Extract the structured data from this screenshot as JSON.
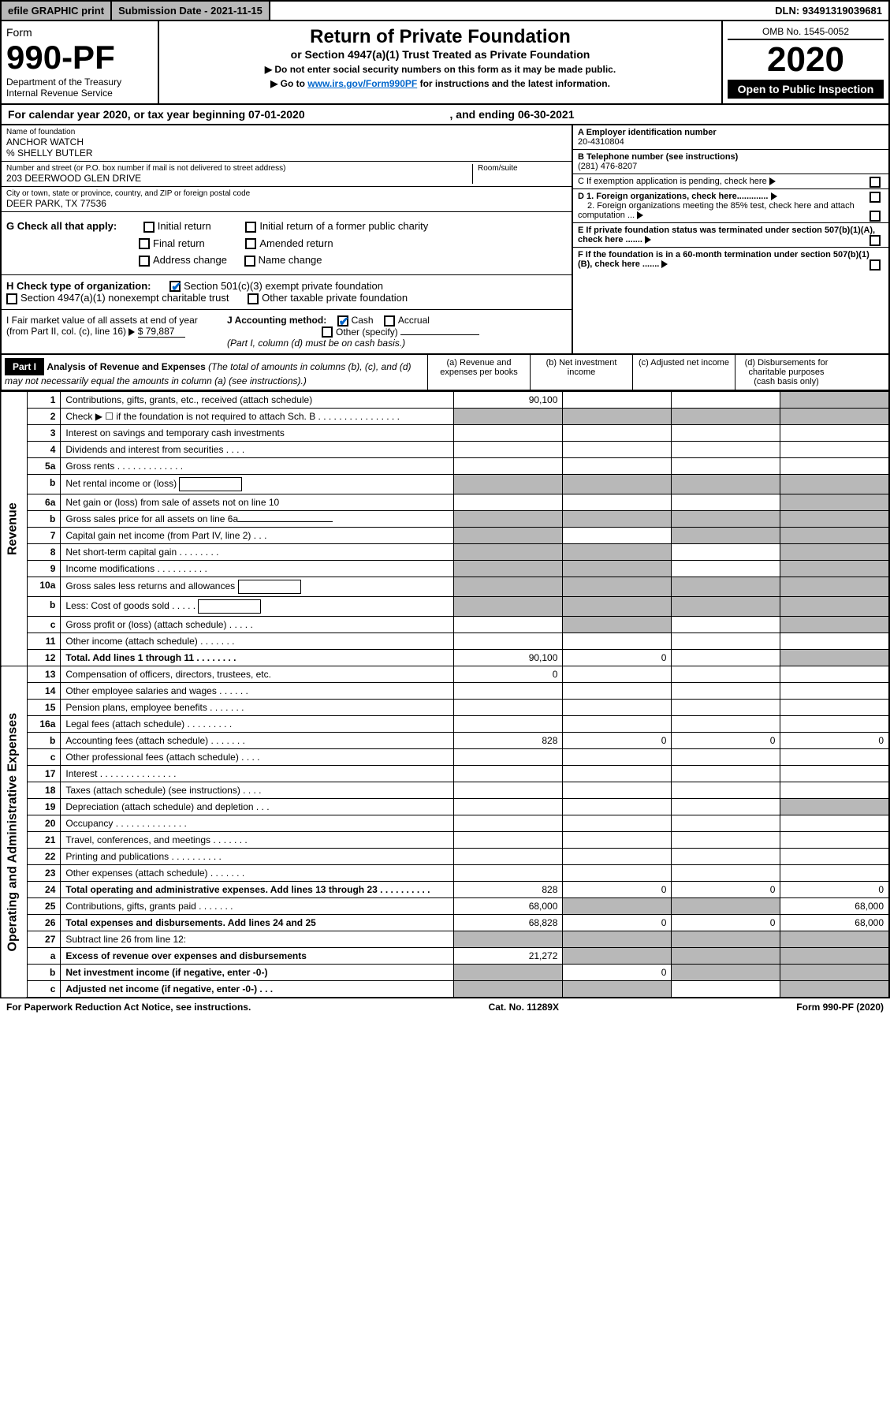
{
  "topbar": {
    "efile": "efile GRAPHIC print",
    "subdate_label": "Submission Date - ",
    "subdate": "2021-11-15",
    "dln": "DLN: 93491319039681"
  },
  "header": {
    "form_word": "Form",
    "form_no": "990-PF",
    "dept": "Department of the Treasury",
    "irs": "Internal Revenue Service",
    "title": "Return of Private Foundation",
    "subtitle": "or Section 4947(a)(1) Trust Treated as Private Foundation",
    "note1": "▶ Do not enter social security numbers on this form as it may be made public.",
    "note2_pre": "▶ Go to ",
    "note2_link": "www.irs.gov/Form990PF",
    "note2_post": " for instructions and the latest information.",
    "omb": "OMB No. 1545-0052",
    "year": "2020",
    "open": "Open to Public Inspection"
  },
  "calyear": {
    "text_pre": "For calendar year 2020, or tax year beginning ",
    "begin": "07-01-2020",
    "text_mid": " , and ending ",
    "end": "06-30-2021"
  },
  "info": {
    "name_lbl": "Name of foundation",
    "name": "ANCHOR WATCH",
    "care_of": "% SHELLY BUTLER",
    "addr_lbl": "Number and street (or P.O. box number if mail is not delivered to street address)",
    "addr": "203 DEERWOOD GLEN DRIVE",
    "room_lbl": "Room/suite",
    "city_lbl": "City or town, state or province, country, and ZIP or foreign postal code",
    "city": "DEER PARK, TX  77536",
    "a_lbl": "A Employer identification number",
    "ein": "20-4310804",
    "b_lbl": "B Telephone number (see instructions)",
    "phone": "(281) 476-8207",
    "c_lbl": "C If exemption application is pending, check here",
    "d1_lbl": "D 1. Foreign organizations, check here.............",
    "d2_lbl": "2. Foreign organizations meeting the 85% test, check here and attach computation ...",
    "e_lbl": "E  If private foundation status was terminated under section 507(b)(1)(A), check here .......",
    "f_lbl": "F  If the foundation is in a 60-month termination under section 507(b)(1)(B), check here ......."
  },
  "sectionG": {
    "label": "G Check all that apply:",
    "initial": "Initial return",
    "initial_former": "Initial return of a former public charity",
    "final": "Final return",
    "amended": "Amended return",
    "addr_change": "Address change",
    "name_change": "Name change"
  },
  "sectionH": {
    "label": "H Check type of organization:",
    "c3": "Section 501(c)(3) exempt private foundation",
    "s4947": "Section 4947(a)(1) nonexempt charitable trust",
    "other_tax": "Other taxable private foundation"
  },
  "sectionI": {
    "text": "I Fair market value of all assets at end of year (from Part II, col. (c), line 16)",
    "arrow_val": "$  79,887"
  },
  "sectionJ": {
    "label": "J Accounting method:",
    "cash": "Cash",
    "accrual": "Accrual",
    "other": "Other (specify)",
    "note": "(Part I, column (d) must be on cash basis.)"
  },
  "partI": {
    "hdr": "Part I",
    "title": "Analysis of Revenue and Expenses",
    "title_note": " (The total of amounts in columns (b), (c), and (d) may not necessarily equal the amounts in column (a) (see instructions).)",
    "col_a": "(a)   Revenue and expenses per books",
    "col_b": "(b)  Net investment income",
    "col_c": "(c)  Adjusted net income",
    "col_d": "(d)  Disbursements for charitable purposes (cash basis only)"
  },
  "side_labels": {
    "revenue": "Revenue",
    "opex": "Operating and Administrative Expenses"
  },
  "rows": [
    {
      "n": "1",
      "desc": "Contributions, gifts, grants, etc., received (attach schedule)",
      "a": "90,100",
      "d_shade": true
    },
    {
      "n": "2",
      "desc": "Check ▶ ☐ if the foundation is not required to attach Sch. B  .  .  .  .  .  .  .  .  .  .  .  .  .  .  .  .",
      "shade_all": true
    },
    {
      "n": "3",
      "desc": "Interest on savings and temporary cash investments"
    },
    {
      "n": "4",
      "desc": "Dividends and interest from securities  .  .  .  ."
    },
    {
      "n": "5a",
      "desc": "Gross rents  .  .  .  .  .  .  .  .  .  .  .  .  ."
    },
    {
      "n": "b",
      "desc": "Net rental income or (loss)",
      "inline_box": true,
      "shade_all": true
    },
    {
      "n": "6a",
      "desc": "Net gain or (loss) from sale of assets not on line 10",
      "d_shade": true
    },
    {
      "n": "b",
      "desc": "Gross sales price for all assets on line 6a",
      "underline_after": true,
      "shade_all": true
    },
    {
      "n": "7",
      "desc": "Capital gain net income (from Part IV, line 2)  .  .  .",
      "a_shade": true,
      "c_shade": true,
      "d_shade": true
    },
    {
      "n": "8",
      "desc": "Net short-term capital gain  .  .  .  .  .  .  .  .",
      "a_shade": true,
      "b_shade": true,
      "d_shade": true
    },
    {
      "n": "9",
      "desc": "Income modifications  .  .  .  .  .  .  .  .  .  .",
      "a_shade": true,
      "b_shade": true,
      "d_shade": true
    },
    {
      "n": "10a",
      "desc": "Gross sales less returns and allowances",
      "inline_box": true,
      "shade_all": true
    },
    {
      "n": "b",
      "desc": "Less: Cost of goods sold  .  .  .  .  .",
      "inline_box": true,
      "shade_all": true
    },
    {
      "n": "c",
      "desc": "Gross profit or (loss) (attach schedule)  .  .  .  .  .",
      "b_shade": true,
      "d_shade": true
    },
    {
      "n": "11",
      "desc": "Other income (attach schedule)  .  .  .  .  .  .  ."
    },
    {
      "n": "12",
      "desc": "Total. Add lines 1 through 11  .  .  .  .  .  .  .  .",
      "bold": true,
      "a": "90,100",
      "b": "0",
      "d_shade": true
    },
    {
      "n": "13",
      "desc": "Compensation of officers, directors, trustees, etc.",
      "a": "0"
    },
    {
      "n": "14",
      "desc": "Other employee salaries and wages  .  .  .  .  .  ."
    },
    {
      "n": "15",
      "desc": "Pension plans, employee benefits  .  .  .  .  .  .  ."
    },
    {
      "n": "16a",
      "desc": "Legal fees (attach schedule)  .  .  .  .  .  .  .  .  ."
    },
    {
      "n": "b",
      "desc": "Accounting fees (attach schedule)  .  .  .  .  .  .  .",
      "a": "828",
      "b": "0",
      "c": "0",
      "d": "0"
    },
    {
      "n": "c",
      "desc": "Other professional fees (attach schedule)  .  .  .  ."
    },
    {
      "n": "17",
      "desc": "Interest  .  .  .  .  .  .  .  .  .  .  .  .  .  .  ."
    },
    {
      "n": "18",
      "desc": "Taxes (attach schedule) (see instructions)  .  .  .  ."
    },
    {
      "n": "19",
      "desc": "Depreciation (attach schedule) and depletion  .  .  .",
      "d_shade": true
    },
    {
      "n": "20",
      "desc": "Occupancy  .  .  .  .  .  .  .  .  .  .  .  .  .  ."
    },
    {
      "n": "21",
      "desc": "Travel, conferences, and meetings  .  .  .  .  .  .  ."
    },
    {
      "n": "22",
      "desc": "Printing and publications  .  .  .  .  .  .  .  .  .  ."
    },
    {
      "n": "23",
      "desc": "Other expenses (attach schedule)  .  .  .  .  .  .  ."
    },
    {
      "n": "24",
      "desc": "Total operating and administrative expenses. Add lines 13 through 23  .  .  .  .  .  .  .  .  .  .",
      "bold": true,
      "a": "828",
      "b": "0",
      "c": "0",
      "d": "0"
    },
    {
      "n": "25",
      "desc": "Contributions, gifts, grants paid  .  .  .  .  .  .  .",
      "a": "68,000",
      "b_shade": true,
      "c_shade": true,
      "d": "68,000"
    },
    {
      "n": "26",
      "desc": "Total expenses and disbursements. Add lines 24 and 25",
      "bold": true,
      "a": "68,828",
      "b": "0",
      "c": "0",
      "d": "68,000"
    },
    {
      "n": "27",
      "desc": "Subtract line 26 from line 12:",
      "shade_all": true
    },
    {
      "n": "a",
      "desc": "Excess of revenue over expenses and disbursements",
      "bold": true,
      "a": "21,272",
      "b_shade": true,
      "c_shade": true,
      "d_shade": true
    },
    {
      "n": "b",
      "desc": "Net investment income (if negative, enter -0-)",
      "bold": true,
      "a_shade": true,
      "b": "0",
      "c_shade": true,
      "d_shade": true
    },
    {
      "n": "c",
      "desc": "Adjusted net income (if negative, enter -0-)  .  .  .",
      "bold": true,
      "a_shade": true,
      "b_shade": true,
      "d_shade": true
    }
  ],
  "footer": {
    "left": "For Paperwork Reduction Act Notice, see instructions.",
    "mid": "Cat. No. 11289X",
    "right": "Form 990-PF (2020)"
  },
  "colors": {
    "shade": "#b8b8b8",
    "link": "#0066cc"
  }
}
